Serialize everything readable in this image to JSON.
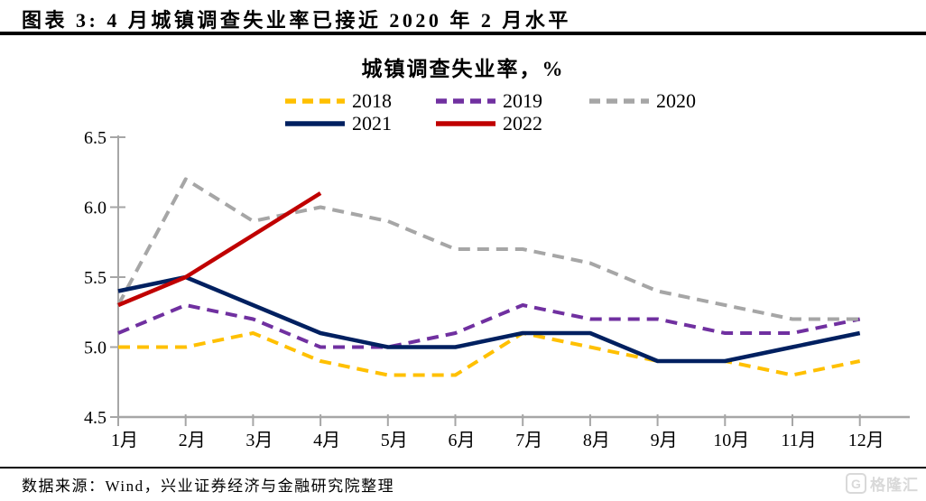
{
  "header": {
    "title": "图表 3: 4 月城镇调查失业率已接近 2020 年 2 月水平"
  },
  "chart_data": {
    "type": "line",
    "title": "城镇调查失业率，%",
    "xlabel": "",
    "ylabel": "",
    "categories": [
      "1月",
      "2月",
      "3月",
      "4月",
      "5月",
      "6月",
      "7月",
      "8月",
      "9月",
      "10月",
      "11月",
      "12月"
    ],
    "ylim": [
      4.5,
      6.5
    ],
    "y_ticks": [
      {
        "label": "4.5",
        "value": 4.5
      },
      {
        "label": "5.0",
        "value": 5.0
      },
      {
        "label": "5.5",
        "value": 5.5
      },
      {
        "label": "6.0",
        "value": 6.0
      },
      {
        "label": "6.5",
        "value": 6.5
      }
    ],
    "grid": false,
    "legend_position": "top",
    "series": [
      {
        "name": "2018",
        "color": "#FFC000",
        "dashed": true,
        "values": [
          5.0,
          5.0,
          5.1,
          4.9,
          4.8,
          4.8,
          5.1,
          5.0,
          4.9,
          4.9,
          4.8,
          4.9
        ]
      },
      {
        "name": "2019",
        "color": "#7030A0",
        "dashed": true,
        "values": [
          5.1,
          5.3,
          5.2,
          5.0,
          5.0,
          5.1,
          5.3,
          5.2,
          5.2,
          5.1,
          5.1,
          5.2
        ]
      },
      {
        "name": "2020",
        "color": "#A6A6A6",
        "dashed": true,
        "values": [
          5.3,
          6.2,
          5.9,
          6.0,
          5.9,
          5.7,
          5.7,
          5.6,
          5.4,
          5.3,
          5.2,
          5.2
        ]
      },
      {
        "name": "2021",
        "color": "#002060",
        "dashed": false,
        "values": [
          5.4,
          5.5,
          5.3,
          5.1,
          5.0,
          5.0,
          5.1,
          5.1,
          4.9,
          4.9,
          5.0,
          5.1
        ]
      },
      {
        "name": "2022",
        "color": "#C00000",
        "dashed": false,
        "values": [
          5.3,
          5.5,
          5.8,
          6.1
        ]
      }
    ]
  },
  "footer": {
    "source": "数据来源：Wind，兴业证券经济与金融研究院整理",
    "logo_letter": "G",
    "logo_text": "格隆汇"
  },
  "colors": {
    "axis": "#A6A6A6",
    "text": "#000000",
    "logo": "#D9D9D9"
  }
}
